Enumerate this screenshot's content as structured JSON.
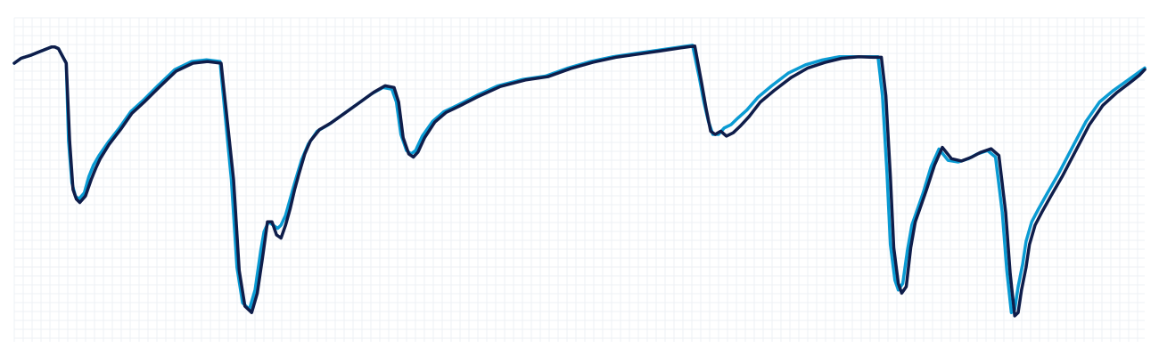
{
  "chart_data": {
    "type": "line",
    "title": "",
    "xlabel": "",
    "ylabel": "",
    "grid": true,
    "legend": "none",
    "xlim": [
      0,
      1
    ],
    "ylim": [
      0,
      1
    ],
    "series": [
      {
        "color": "#0a9bd3",
        "x": [
          0.0,
          0.006,
          0.015,
          0.022,
          0.033,
          0.036,
          0.039,
          0.046,
          0.048,
          0.051,
          0.054,
          0.057,
          0.062,
          0.066,
          0.07,
          0.075,
          0.083,
          0.093,
          0.103,
          0.114,
          0.127,
          0.142,
          0.157,
          0.17,
          0.182,
          0.192,
          0.197,
          0.202,
          0.208,
          0.213,
          0.218,
          0.221,
          0.225,
          0.229,
          0.233,
          0.236,
          0.24,
          0.244,
          0.248,
          0.254,
          0.26,
          0.268,
          0.278,
          0.29,
          0.302,
          0.316,
          0.326,
          0.334,
          0.338,
          0.342,
          0.347,
          0.351,
          0.355,
          0.361,
          0.37,
          0.38,
          0.392,
          0.409,
          0.428,
          0.45,
          0.47,
          0.49,
          0.51,
          0.53,
          0.55,
          0.57,
          0.589,
          0.6,
          0.606,
          0.61,
          0.614,
          0.618,
          0.623,
          0.628,
          0.634,
          0.64,
          0.648,
          0.658,
          0.67,
          0.685,
          0.7,
          0.715,
          0.73,
          0.745,
          0.757,
          0.764,
          0.768,
          0.772,
          0.775,
          0.779,
          0.782,
          0.786,
          0.79,
          0.794,
          0.798,
          0.804,
          0.811,
          0.818,
          0.826,
          0.835,
          0.844,
          0.852,
          0.861,
          0.868,
          0.874,
          0.878,
          0.882,
          0.885,
          0.888,
          0.892,
          0.895,
          0.9,
          0.906,
          0.914,
          0.924,
          0.936,
          0.948,
          0.96,
          0.972,
          0.984,
          0.992,
          1.0
        ],
        "y": [
          0.86,
          0.875,
          0.885,
          0.895,
          0.91,
          0.91,
          0.905,
          0.86,
          0.62,
          0.49,
          0.45,
          0.44,
          0.46,
          0.51,
          0.545,
          0.575,
          0.615,
          0.66,
          0.71,
          0.745,
          0.79,
          0.84,
          0.865,
          0.87,
          0.865,
          0.5,
          0.23,
          0.12,
          0.1,
          0.16,
          0.28,
          0.34,
          0.37,
          0.36,
          0.35,
          0.36,
          0.39,
          0.44,
          0.49,
          0.56,
          0.61,
          0.65,
          0.67,
          0.7,
          0.73,
          0.765,
          0.785,
          0.78,
          0.74,
          0.64,
          0.59,
          0.58,
          0.59,
          0.635,
          0.68,
          0.71,
          0.73,
          0.76,
          0.79,
          0.81,
          0.82,
          0.845,
          0.865,
          0.88,
          0.89,
          0.9,
          0.91,
          0.915,
          0.815,
          0.74,
          0.68,
          0.64,
          0.64,
          0.66,
          0.67,
          0.69,
          0.715,
          0.755,
          0.79,
          0.83,
          0.855,
          0.87,
          0.88,
          0.88,
          0.88,
          0.88,
          0.76,
          0.52,
          0.3,
          0.19,
          0.16,
          0.18,
          0.28,
          0.36,
          0.4,
          0.46,
          0.54,
          0.595,
          0.56,
          0.555,
          0.565,
          0.58,
          0.59,
          0.57,
          0.4,
          0.22,
          0.09,
          0.1,
          0.17,
          0.24,
          0.31,
          0.37,
          0.41,
          0.46,
          0.52,
          0.6,
          0.68,
          0.74,
          0.775,
          0.805,
          0.825,
          0.845
        ]
      },
      {
        "color": "#0f1d4a",
        "x": [
          0.0,
          0.006,
          0.015,
          0.022,
          0.033,
          0.036,
          0.039,
          0.046,
          0.049,
          0.052,
          0.055,
          0.058,
          0.063,
          0.068,
          0.072,
          0.076,
          0.084,
          0.094,
          0.104,
          0.115,
          0.128,
          0.143,
          0.158,
          0.171,
          0.183,
          0.194,
          0.199,
          0.204,
          0.21,
          0.215,
          0.22,
          0.224,
          0.228,
          0.232,
          0.236,
          0.24,
          0.244,
          0.248,
          0.252,
          0.257,
          0.262,
          0.27,
          0.28,
          0.292,
          0.304,
          0.318,
          0.328,
          0.336,
          0.34,
          0.344,
          0.349,
          0.353,
          0.357,
          0.363,
          0.372,
          0.382,
          0.394,
          0.411,
          0.43,
          0.452,
          0.472,
          0.492,
          0.512,
          0.532,
          0.552,
          0.572,
          0.591,
          0.602,
          0.608,
          0.612,
          0.616,
          0.62,
          0.625,
          0.63,
          0.636,
          0.642,
          0.65,
          0.66,
          0.672,
          0.687,
          0.702,
          0.717,
          0.732,
          0.747,
          0.76,
          0.767,
          0.771,
          0.775,
          0.778,
          0.782,
          0.785,
          0.789,
          0.793,
          0.797,
          0.801,
          0.807,
          0.814,
          0.821,
          0.829,
          0.838,
          0.847,
          0.855,
          0.864,
          0.871,
          0.877,
          0.881,
          0.885,
          0.888,
          0.891,
          0.895,
          0.898,
          0.903,
          0.909,
          0.917,
          0.927,
          0.939,
          0.951,
          0.963,
          0.975,
          0.987,
          0.995,
          1.0
        ],
        "y": [
          0.86,
          0.875,
          0.885,
          0.895,
          0.91,
          0.91,
          0.905,
          0.86,
          0.62,
          0.47,
          0.44,
          0.43,
          0.45,
          0.5,
          0.535,
          0.565,
          0.61,
          0.655,
          0.705,
          0.74,
          0.785,
          0.835,
          0.86,
          0.865,
          0.86,
          0.5,
          0.22,
          0.11,
          0.09,
          0.15,
          0.27,
          0.37,
          0.37,
          0.33,
          0.32,
          0.36,
          0.41,
          0.47,
          0.52,
          0.58,
          0.62,
          0.655,
          0.675,
          0.705,
          0.735,
          0.77,
          0.79,
          0.785,
          0.74,
          0.63,
          0.58,
          0.57,
          0.585,
          0.63,
          0.678,
          0.708,
          0.728,
          0.758,
          0.788,
          0.808,
          0.818,
          0.843,
          0.863,
          0.878,
          0.888,
          0.898,
          0.908,
          0.913,
          0.8,
          0.72,
          0.65,
          0.64,
          0.65,
          0.635,
          0.645,
          0.665,
          0.695,
          0.74,
          0.775,
          0.815,
          0.845,
          0.862,
          0.875,
          0.88,
          0.878,
          0.878,
          0.76,
          0.51,
          0.29,
          0.18,
          0.15,
          0.17,
          0.29,
          0.37,
          0.41,
          0.47,
          0.545,
          0.6,
          0.565,
          0.558,
          0.57,
          0.585,
          0.596,
          0.575,
          0.4,
          0.21,
          0.08,
          0.09,
          0.16,
          0.23,
          0.3,
          0.36,
          0.4,
          0.45,
          0.51,
          0.59,
          0.67,
          0.73,
          0.768,
          0.8,
          0.822,
          0.84
        ]
      }
    ]
  }
}
